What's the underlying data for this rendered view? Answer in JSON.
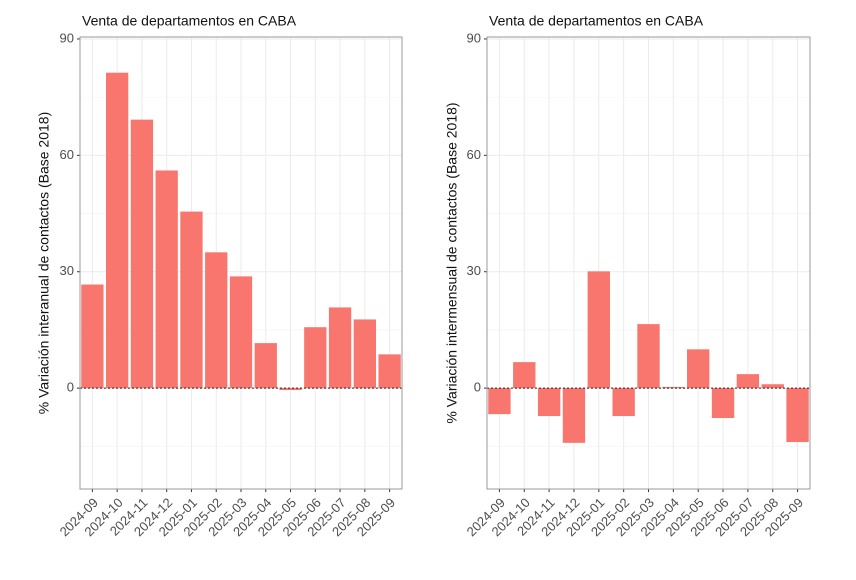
{
  "chart_data": [
    {
      "type": "bar",
      "title": "Venta de departamentos en CABA",
      "y_label": "% Variación interanual de contactos (Base 2018)",
      "categories": [
        "2024-09",
        "2024-10",
        "2024-11",
        "2024-12",
        "2025-01",
        "2025-02",
        "2025-03",
        "2025-04",
        "2025-05",
        "2025-06",
        "2025-07",
        "2025-08",
        "2025-09"
      ],
      "values": [
        26.7,
        81.3,
        69.2,
        56.1,
        45.5,
        35.0,
        28.8,
        11.6,
        -0.5,
        15.7,
        20.8,
        17.7,
        8.7
      ],
      "color": "#F8766D",
      "ylim": [
        -26,
        90.5
      ],
      "yticks": [
        0,
        30,
        60,
        90
      ],
      "grid": true,
      "reference_line": 0
    },
    {
      "type": "bar",
      "title": "Venta de departamentos en CABA",
      "y_label": "% Variación intermensual de contactos (Base 2018)",
      "categories": [
        "2024-09",
        "2024-10",
        "2024-11",
        "2024-12",
        "2025-01",
        "2025-02",
        "2025-03",
        "2025-04",
        "2025-05",
        "2025-06",
        "2025-07",
        "2025-08",
        "2025-09"
      ],
      "values": [
        -6.7,
        6.7,
        -7.2,
        -14.1,
        30.1,
        -7.2,
        16.5,
        0.3,
        10.0,
        -7.7,
        3.6,
        1.0,
        -13.9
      ],
      "color": "#F8766D",
      "ylim": [
        -26,
        90.5
      ],
      "yticks": [
        0,
        30,
        60,
        90
      ],
      "grid": true,
      "reference_line": 0
    }
  ]
}
